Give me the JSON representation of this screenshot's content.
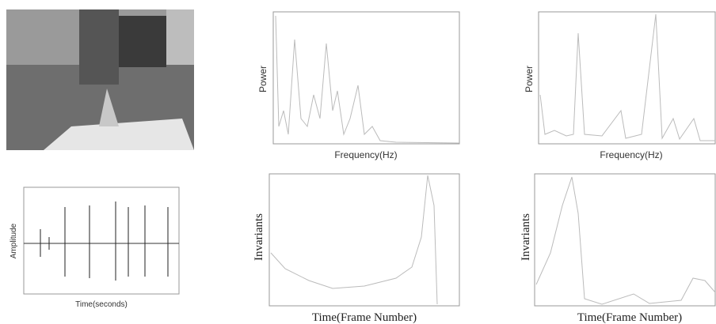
{
  "panels": [
    {
      "x_label": "Time(seconds)",
      "y_label": "Amplitude"
    },
    {
      "x_label": "Frequency(Hz)",
      "y_label": "Power"
    },
    {
      "x_label": "Frequency(Hz)",
      "y_label": "Power"
    },
    {
      "x_label": "Time(Frame Number)",
      "y_label": "Invariants"
    },
    {
      "x_label": "Time(Frame Number)",
      "y_label": "Invariants"
    }
  ]
}
